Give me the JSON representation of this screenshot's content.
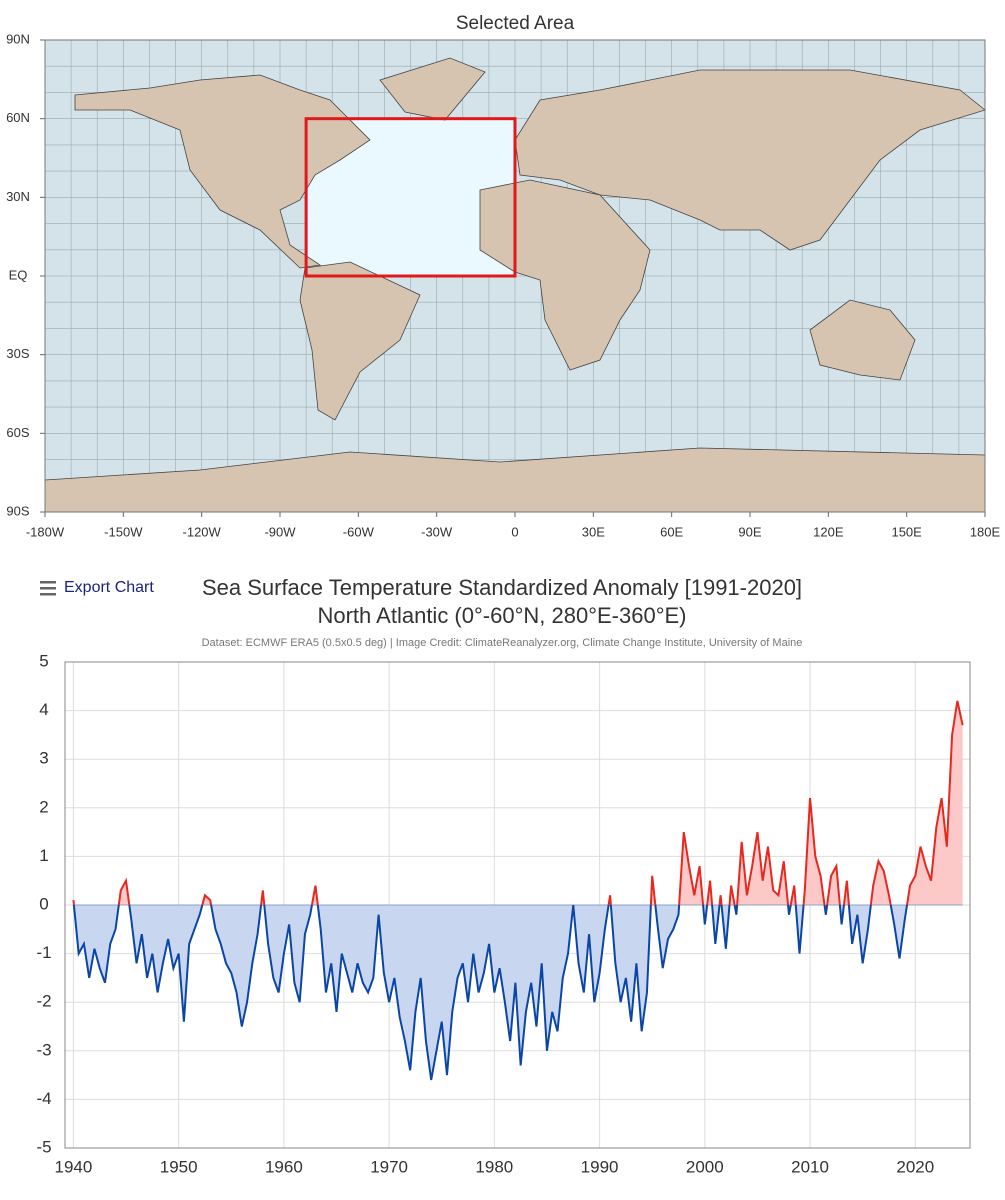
{
  "chart_data": [
    {
      "type": "map",
      "title": "Selected Area",
      "xlim": [
        -180,
        180
      ],
      "ylim": [
        -90,
        90
      ],
      "xticks": [
        {
          "value": -180,
          "label": "-180W"
        },
        {
          "value": -150,
          "label": "-150W"
        },
        {
          "value": -120,
          "label": "-120W"
        },
        {
          "value": -90,
          "label": "-90W"
        },
        {
          "value": -60,
          "label": "-60W"
        },
        {
          "value": -30,
          "label": "-30W"
        },
        0,
        {
          "value": 30,
          "label": "30E"
        },
        {
          "value": 60,
          "label": "60E"
        },
        {
          "value": 90,
          "label": "90E"
        },
        {
          "value": 120,
          "label": "120E"
        },
        {
          "value": 150,
          "label": "150E"
        },
        {
          "value": 180,
          "label": "180E"
        }
      ],
      "yticks": [
        {
          "value": 90,
          "label": "90N"
        },
        {
          "value": 60,
          "label": "60N"
        },
        {
          "value": 30,
          "label": "30N"
        },
        {
          "value": 0,
          "label": "EQ"
        },
        {
          "value": -30,
          "label": "30S"
        },
        {
          "value": -60,
          "label": "60S"
        },
        {
          "value": -90,
          "label": "90S"
        }
      ],
      "region": {
        "lon": [
          -80,
          0
        ],
        "lat": [
          0,
          60
        ],
        "color": "#e01a1a"
      }
    },
    {
      "type": "line",
      "menu": "Export Chart",
      "title": "Sea Surface Temperature Standardized Anomaly [1991-2020]",
      "subtitle": "North Atlantic (0°-60°N, 280°E-360°E)",
      "credit": "Dataset: ECMWF ERA5 (0.5x0.5 deg) | Image Credit: ClimateReanalyzer.org, Climate Change Institute, University of Maine",
      "xlim": [
        1939.2,
        2025.2
      ],
      "ylim": [
        -5,
        5
      ],
      "xticks": [
        1940,
        1950,
        1960,
        1970,
        1980,
        1990,
        2000,
        2010,
        2020
      ],
      "yticks": [
        -5,
        -4,
        -3,
        -2,
        -1,
        0,
        1,
        2,
        3,
        4,
        5
      ],
      "grid": true,
      "color_above": "#e8281e",
      "color_below": "#0b46a6",
      "fill_above": "#fcc8c8",
      "fill_below": "#c8d6ef",
      "x": [
        1940,
        1940.5,
        1941,
        1941.5,
        1942,
        1942.5,
        1943,
        1943.5,
        1944,
        1944.5,
        1945,
        1945.5,
        1946,
        1946.5,
        1947,
        1947.5,
        1948,
        1948.5,
        1949,
        1949.5,
        1950,
        1950.5,
        1951,
        1951.5,
        1952,
        1952.5,
        1953,
        1953.5,
        1954,
        1954.5,
        1955,
        1955.5,
        1956,
        1956.5,
        1957,
        1957.5,
        1958,
        1958.5,
        1959,
        1959.5,
        1960,
        1960.5,
        1961,
        1961.5,
        1962,
        1962.5,
        1963,
        1963.5,
        1964,
        1964.5,
        1965,
        1965.5,
        1966,
        1966.5,
        1967,
        1967.5,
        1968,
        1968.5,
        1969,
        1969.5,
        1970,
        1970.5,
        1971,
        1971.5,
        1972,
        1972.5,
        1973,
        1973.5,
        1974,
        1974.5,
        1975,
        1975.5,
        1976,
        1976.5,
        1977,
        1977.5,
        1978,
        1978.5,
        1979,
        1979.5,
        1980,
        1980.5,
        1981,
        1981.5,
        1982,
        1982.5,
        1983,
        1983.5,
        1984,
        1984.5,
        1985,
        1985.5,
        1986,
        1986.5,
        1987,
        1987.5,
        1988,
        1988.5,
        1989,
        1989.5,
        1990,
        1990.5,
        1991,
        1991.5,
        1992,
        1992.5,
        1993,
        1993.5,
        1994,
        1994.5,
        1995,
        1995.5,
        1996,
        1996.5,
        1997,
        1997.5,
        1998,
        1998.5,
        1999,
        1999.5,
        2000,
        2000.5,
        2001,
        2001.5,
        2002,
        2002.5,
        2003,
        2003.5,
        2004,
        2004.5,
        2005,
        2005.5,
        2006,
        2006.5,
        2007,
        2007.5,
        2008,
        2008.5,
        2009,
        2009.5,
        2010,
        2010.5,
        2011,
        2011.5,
        2012,
        2012.5,
        2013,
        2013.5,
        2014,
        2014.5,
        2015,
        2015.5,
        2016,
        2016.5,
        2017,
        2017.5,
        2018,
        2018.5,
        2019,
        2019.5,
        2020,
        2020.5,
        2021,
        2021.5,
        2022,
        2022.5,
        2023,
        2023.5,
        2024,
        2024.5
      ],
      "values": [
        0.1,
        -1.0,
        -0.8,
        -1.5,
        -0.9,
        -1.3,
        -1.6,
        -0.8,
        -0.5,
        0.3,
        0.5,
        -0.3,
        -1.2,
        -0.6,
        -1.5,
        -1.0,
        -1.8,
        -1.2,
        -0.7,
        -1.3,
        -1.0,
        -2.4,
        -0.8,
        -0.5,
        -0.2,
        0.2,
        0.1,
        -0.5,
        -0.8,
        -1.2,
        -1.4,
        -1.8,
        -2.5,
        -2.0,
        -1.2,
        -0.6,
        0.3,
        -0.8,
        -1.5,
        -1.8,
        -1.0,
        -0.4,
        -1.6,
        -2.0,
        -0.6,
        -0.2,
        0.4,
        -0.5,
        -1.8,
        -1.2,
        -2.2,
        -1.0,
        -1.4,
        -1.8,
        -1.2,
        -1.6,
        -1.8,
        -1.5,
        -0.2,
        -1.4,
        -2.0,
        -1.5,
        -2.3,
        -2.8,
        -3.4,
        -2.2,
        -1.5,
        -2.8,
        -3.6,
        -3.0,
        -2.4,
        -3.5,
        -2.2,
        -1.5,
        -1.2,
        -2.0,
        -1.0,
        -1.8,
        -1.4,
        -0.8,
        -1.8,
        -1.3,
        -2.0,
        -2.8,
        -1.6,
        -3.3,
        -2.2,
        -1.6,
        -2.5,
        -1.2,
        -3.0,
        -2.2,
        -2.6,
        -1.5,
        -1.0,
        0.0,
        -1.2,
        -1.8,
        -0.6,
        -2.0,
        -1.4,
        -0.5,
        0.2,
        -1.2,
        -2.0,
        -1.5,
        -2.4,
        -1.2,
        -2.6,
        -1.8,
        0.6,
        -0.4,
        -1.3,
        -0.7,
        -0.5,
        -0.2,
        1.5,
        0.8,
        0.2,
        0.8,
        -0.4,
        0.5,
        -0.8,
        0.2,
        -0.9,
        0.4,
        -0.2,
        1.3,
        0.2,
        0.8,
        1.5,
        0.5,
        1.2,
        0.3,
        0.2,
        0.9,
        -0.2,
        0.4,
        -1.0,
        0.3,
        2.2,
        1.0,
        0.6,
        -0.2,
        0.6,
        0.8,
        -0.4,
        0.5,
        -0.8,
        -0.2,
        -1.2,
        -0.5,
        0.4,
        0.9,
        0.7,
        0.2,
        -0.4,
        -1.1,
        -0.3,
        0.4,
        0.6,
        1.2,
        0.8,
        0.5,
        1.6,
        2.2,
        1.2,
        3.5,
        4.2,
        3.7
      ]
    }
  ]
}
